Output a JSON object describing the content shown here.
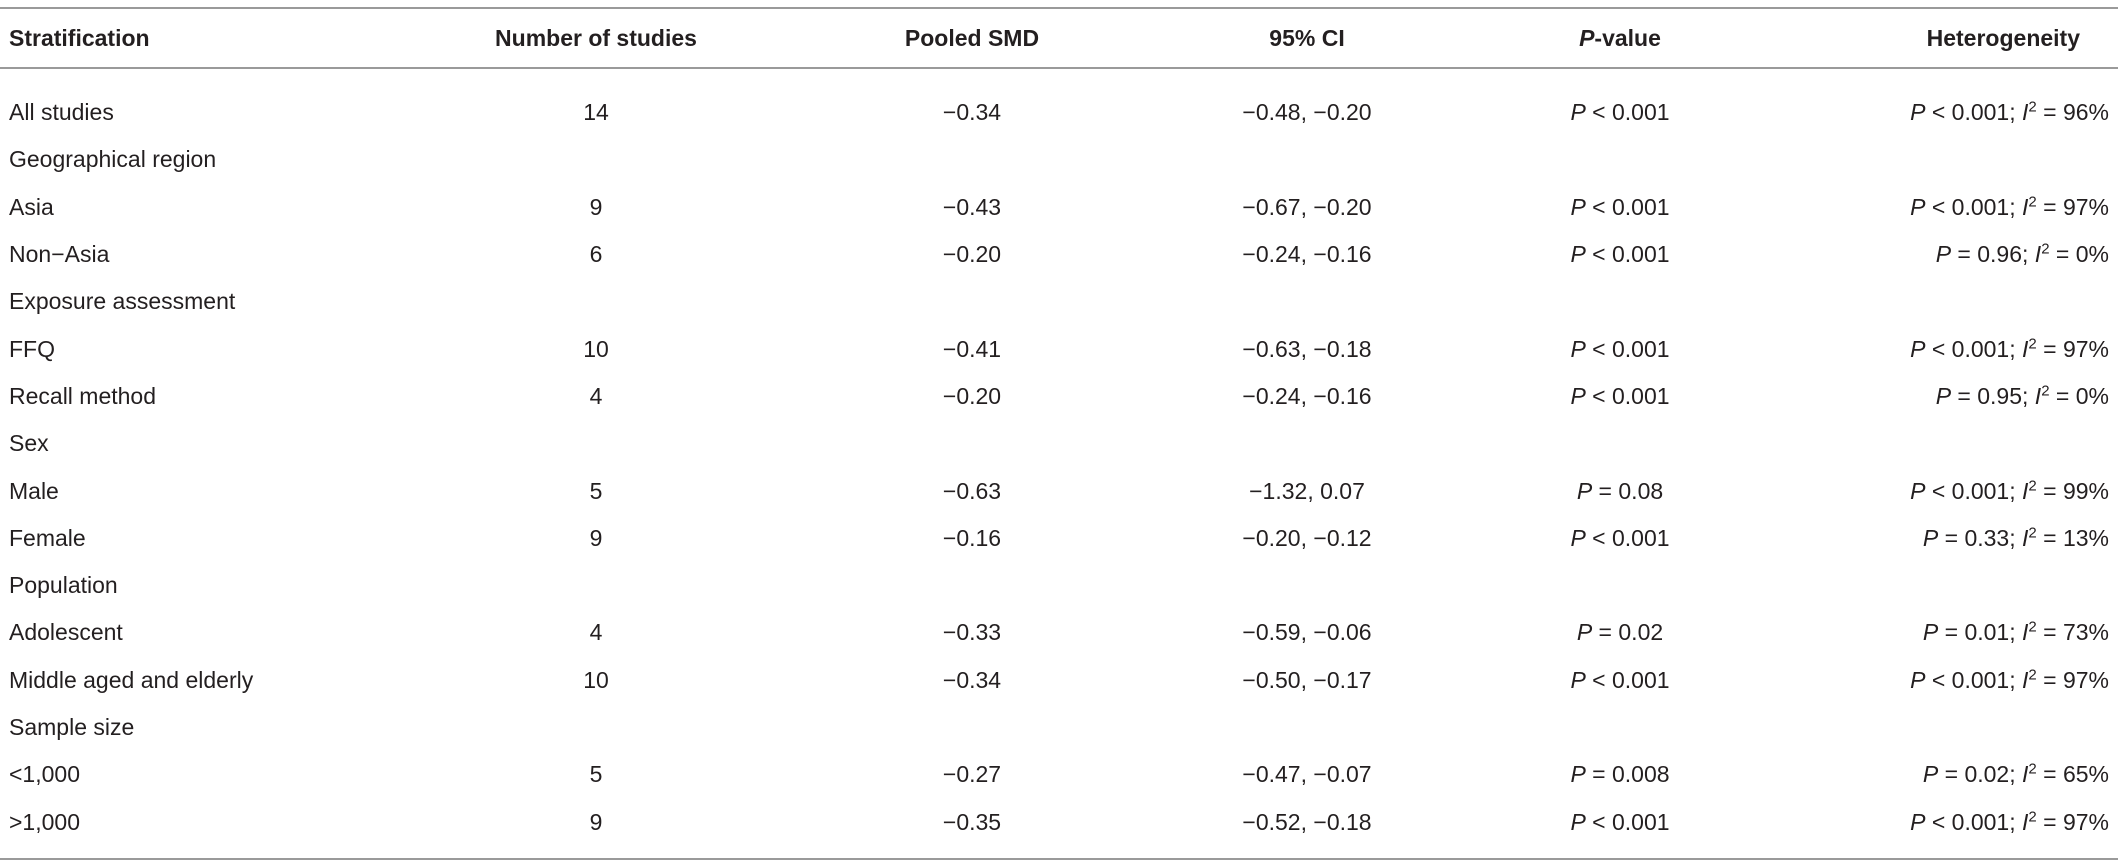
{
  "table": {
    "header": [
      "Stratification",
      "Number of studies",
      "Pooled SMD",
      "95% CI",
      [
        {
          "t": "P",
          "i": true
        },
        {
          "t": "-value"
        }
      ],
      "Heterogeneity"
    ],
    "rows": [
      [
        "All studies",
        14,
        "−0.34",
        "−0.48, −0.20",
        [
          {
            "t": "P",
            "i": true
          },
          {
            "t": " < 0.001"
          }
        ],
        [
          {
            "t": "P",
            "i": true
          },
          {
            "t": " < 0.001; "
          },
          {
            "t": "I",
            "i": true
          },
          {
            "t": "2",
            "sup": true
          },
          {
            "t": " = 96%"
          }
        ]
      ],
      [
        "Geographical region"
      ],
      [
        "Asia",
        9,
        "−0.43",
        "−0.67, −0.20",
        [
          {
            "t": "P",
            "i": true
          },
          {
            "t": " < 0.001"
          }
        ],
        [
          {
            "t": "P",
            "i": true
          },
          {
            "t": " < 0.001; "
          },
          {
            "t": "I",
            "i": true
          },
          {
            "t": "2",
            "sup": true
          },
          {
            "t": " = 97%"
          }
        ]
      ],
      [
        "Non−Asia",
        6,
        "−0.20",
        "−0.24, −0.16",
        [
          {
            "t": "P",
            "i": true
          },
          {
            "t": " < 0.001"
          }
        ],
        [
          {
            "t": "P",
            "i": true
          },
          {
            "t": " = 0.96; "
          },
          {
            "t": "I",
            "i": true
          },
          {
            "t": "2",
            "sup": true
          },
          {
            "t": " = 0%"
          }
        ]
      ],
      [
        "Exposure assessment"
      ],
      [
        "FFQ",
        10,
        "−0.41",
        "−0.63, −0.18",
        [
          {
            "t": "P",
            "i": true
          },
          {
            "t": " < 0.001"
          }
        ],
        [
          {
            "t": "P",
            "i": true
          },
          {
            "t": " < 0.001; "
          },
          {
            "t": "I",
            "i": true
          },
          {
            "t": "2",
            "sup": true
          },
          {
            "t": " = 97%"
          }
        ]
      ],
      [
        "Recall method",
        4,
        "−0.20",
        "−0.24, −0.16",
        [
          {
            "t": "P",
            "i": true
          },
          {
            "t": " < 0.001"
          }
        ],
        [
          {
            "t": "P",
            "i": true
          },
          {
            "t": " = 0.95; "
          },
          {
            "t": "I",
            "i": true
          },
          {
            "t": "2",
            "sup": true
          },
          {
            "t": " = 0%"
          }
        ]
      ],
      [
        "Sex"
      ],
      [
        "Male",
        5,
        "−0.63",
        "−1.32, 0.07",
        [
          {
            "t": "P",
            "i": true
          },
          {
            "t": " = 0.08"
          }
        ],
        [
          {
            "t": "P",
            "i": true
          },
          {
            "t": " < 0.001; "
          },
          {
            "t": "I",
            "i": true
          },
          {
            "t": "2",
            "sup": true
          },
          {
            "t": " = 99%"
          }
        ]
      ],
      [
        "Female",
        9,
        "−0.16",
        "−0.20, −0.12",
        [
          {
            "t": "P",
            "i": true
          },
          {
            "t": " < 0.001"
          }
        ],
        [
          {
            "t": "P",
            "i": true
          },
          {
            "t": " = 0.33; "
          },
          {
            "t": "I",
            "i": true
          },
          {
            "t": "2",
            "sup": true
          },
          {
            "t": " = 13%"
          }
        ]
      ],
      [
        "Population"
      ],
      [
        "Adolescent",
        4,
        "−0.33",
        "−0.59, −0.06",
        [
          {
            "t": "P",
            "i": true
          },
          {
            "t": " = 0.02"
          }
        ],
        [
          {
            "t": "P",
            "i": true
          },
          {
            "t": " = 0.01; "
          },
          {
            "t": "I",
            "i": true
          },
          {
            "t": "2",
            "sup": true
          },
          {
            "t": " = 73%"
          }
        ]
      ],
      [
        "Middle aged and elderly",
        10,
        "−0.34",
        "−0.50, −0.17",
        [
          {
            "t": "P",
            "i": true
          },
          {
            "t": " < 0.001"
          }
        ],
        [
          {
            "t": "P",
            "i": true
          },
          {
            "t": " < 0.001; "
          },
          {
            "t": "I",
            "i": true
          },
          {
            "t": "2",
            "sup": true
          },
          {
            "t": " = 97%"
          }
        ]
      ],
      [
        "Sample size"
      ],
      [
        "<1,000",
        5,
        "−0.27",
        "−0.47, −0.07",
        [
          {
            "t": "P",
            "i": true
          },
          {
            "t": " = 0.008"
          }
        ],
        [
          {
            "t": "P",
            "i": true
          },
          {
            "t": " = 0.02; "
          },
          {
            "t": "I",
            "i": true
          },
          {
            "t": "2",
            "sup": true
          },
          {
            "t": " = 65%"
          }
        ]
      ],
      [
        ">1,000",
        9,
        "−0.35",
        "−0.52, −0.18",
        [
          {
            "t": "P",
            "i": true
          },
          {
            "t": " < 0.001"
          }
        ],
        [
          {
            "t": "P",
            "i": true
          },
          {
            "t": " < 0.001; "
          },
          {
            "t": "I",
            "i": true
          },
          {
            "t": "2",
            "sup": true
          },
          {
            "t": " = 97%"
          }
        ]
      ]
    ]
  }
}
